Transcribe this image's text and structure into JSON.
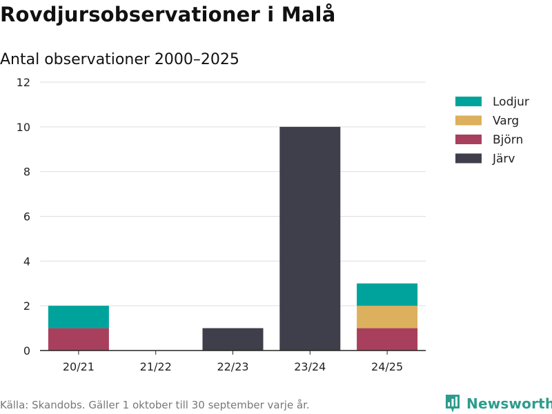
{
  "header": {
    "title": "Rovdjursobservationer i Malå",
    "subtitle": "Antal observationer 2000–2025"
  },
  "footer": {
    "source_note": "Källa: Skandobs. Gäller 1 oktober till 30 september varje år.",
    "brand": "Newsworthy"
  },
  "colors": {
    "Lodjur": "#00a39b",
    "Varg": "#dcb05d",
    "Björn": "#a8405d",
    "Järv": "#3f3e4b",
    "grid": "#dddddd",
    "axis": "#222222",
    "brand": "#2c9c8c"
  },
  "chart_data": {
    "type": "bar",
    "stacked": true,
    "title": "Rovdjursobservationer i Malå",
    "subtitle": "Antal observationer 2000–2025",
    "xlabel": "",
    "ylabel": "",
    "categories": [
      "20/21",
      "21/22",
      "22/23",
      "23/24",
      "24/25"
    ],
    "series": [
      {
        "name": "Järv",
        "values": [
          0,
          0,
          1,
          10,
          0
        ]
      },
      {
        "name": "Björn",
        "values": [
          1,
          0,
          0,
          0,
          1
        ]
      },
      {
        "name": "Varg",
        "values": [
          0,
          0,
          0,
          0,
          1
        ]
      },
      {
        "name": "Lodjur",
        "values": [
          1,
          0,
          0,
          0,
          1
        ]
      }
    ],
    "legend_order": [
      "Lodjur",
      "Varg",
      "Björn",
      "Järv"
    ],
    "legend_position": "top-right",
    "ylim": [
      0,
      12
    ],
    "yticks": [
      0,
      2,
      4,
      6,
      8,
      10,
      12
    ],
    "grid": true
  }
}
